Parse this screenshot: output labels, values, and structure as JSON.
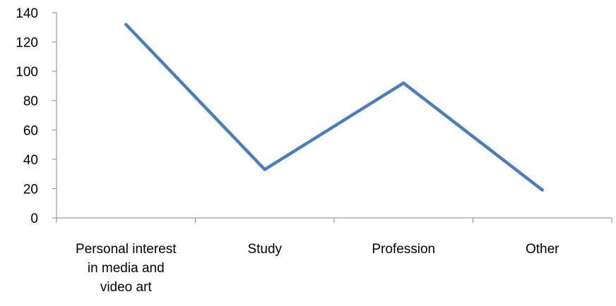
{
  "chart_data": {
    "type": "line",
    "categories": [
      [
        "Personal interest",
        "in media and",
        "video art"
      ],
      [
        "Study"
      ],
      [
        "Profession"
      ],
      [
        "Other"
      ]
    ],
    "series": [
      {
        "values": [
          132,
          33,
          92,
          19
        ]
      }
    ],
    "ylim": [
      0,
      140
    ],
    "yticks": [
      0,
      20,
      40,
      60,
      80,
      100,
      120,
      140
    ],
    "grid": false,
    "legend": "none",
    "title": "",
    "xlabel": "",
    "ylabel": "",
    "colors": {
      "line": "#4a7ebb",
      "axis": "#868686"
    }
  }
}
